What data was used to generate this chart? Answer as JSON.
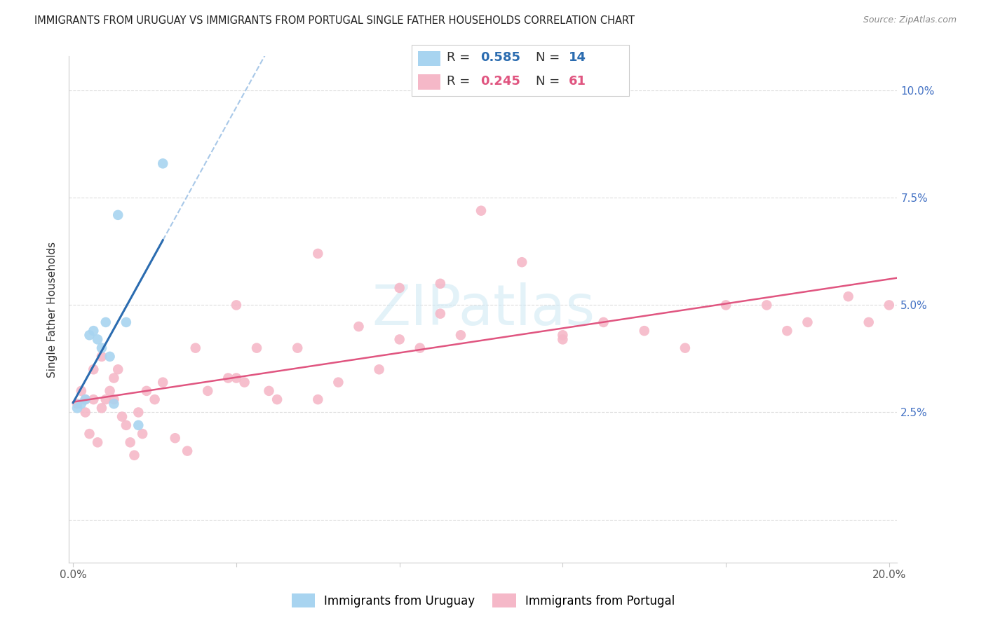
{
  "title": "IMMIGRANTS FROM URUGUAY VS IMMIGRANTS FROM PORTUGAL SINGLE FATHER HOUSEHOLDS CORRELATION CHART",
  "source": "Source: ZipAtlas.com",
  "ylabel": "Single Father Households",
  "xlim": [
    -0.001,
    0.202
  ],
  "ylim": [
    -0.01,
    0.108
  ],
  "ytick_vals": [
    0.0,
    0.025,
    0.05,
    0.075,
    0.1
  ],
  "ytick_labels_right": [
    "",
    "2.5%",
    "5.0%",
    "7.5%",
    "10.0%"
  ],
  "xtick_vals": [
    0.0,
    0.04,
    0.08,
    0.12,
    0.16,
    0.2
  ],
  "xtick_labels": [
    "0.0%",
    "",
    "",
    "",
    "",
    "20.0%"
  ],
  "uruguay_R": 0.585,
  "uruguay_N": 14,
  "portugal_R": 0.245,
  "portugal_N": 61,
  "uruguay_color": "#a8d4f0",
  "portugal_color": "#f5b8c8",
  "uruguay_line_color": "#2b6cb0",
  "portugal_line_color": "#e05580",
  "ref_line_color": "#a8c8e8",
  "watermark": "ZIPatlas",
  "uruguay_x": [
    0.001,
    0.002,
    0.003,
    0.004,
    0.005,
    0.006,
    0.007,
    0.008,
    0.009,
    0.01,
    0.011,
    0.013,
    0.016,
    0.022
  ],
  "uruguay_y": [
    0.026,
    0.027,
    0.028,
    0.043,
    0.044,
    0.042,
    0.04,
    0.046,
    0.038,
    0.027,
    0.071,
    0.046,
    0.022,
    0.083
  ],
  "portugal_x": [
    0.001,
    0.002,
    0.003,
    0.003,
    0.004,
    0.005,
    0.005,
    0.006,
    0.007,
    0.007,
    0.008,
    0.009,
    0.01,
    0.01,
    0.011,
    0.012,
    0.013,
    0.014,
    0.015,
    0.016,
    0.017,
    0.018,
    0.02,
    0.022,
    0.025,
    0.028,
    0.03,
    0.033,
    0.038,
    0.04,
    0.042,
    0.045,
    0.048,
    0.05,
    0.055,
    0.06,
    0.065,
    0.07,
    0.075,
    0.08,
    0.085,
    0.09,
    0.095,
    0.1,
    0.11,
    0.12,
    0.13,
    0.14,
    0.15,
    0.16,
    0.17,
    0.175,
    0.18,
    0.19,
    0.195,
    0.2,
    0.08,
    0.12,
    0.06,
    0.09,
    0.04
  ],
  "portugal_y": [
    0.027,
    0.03,
    0.025,
    0.028,
    0.02,
    0.035,
    0.028,
    0.018,
    0.038,
    0.026,
    0.028,
    0.03,
    0.028,
    0.033,
    0.035,
    0.024,
    0.022,
    0.018,
    0.015,
    0.025,
    0.02,
    0.03,
    0.028,
    0.032,
    0.019,
    0.016,
    0.04,
    0.03,
    0.033,
    0.05,
    0.032,
    0.04,
    0.03,
    0.028,
    0.04,
    0.028,
    0.032,
    0.045,
    0.035,
    0.042,
    0.04,
    0.055,
    0.043,
    0.072,
    0.06,
    0.042,
    0.046,
    0.044,
    0.04,
    0.05,
    0.05,
    0.044,
    0.046,
    0.052,
    0.046,
    0.05,
    0.054,
    0.043,
    0.062,
    0.048,
    0.033
  ]
}
